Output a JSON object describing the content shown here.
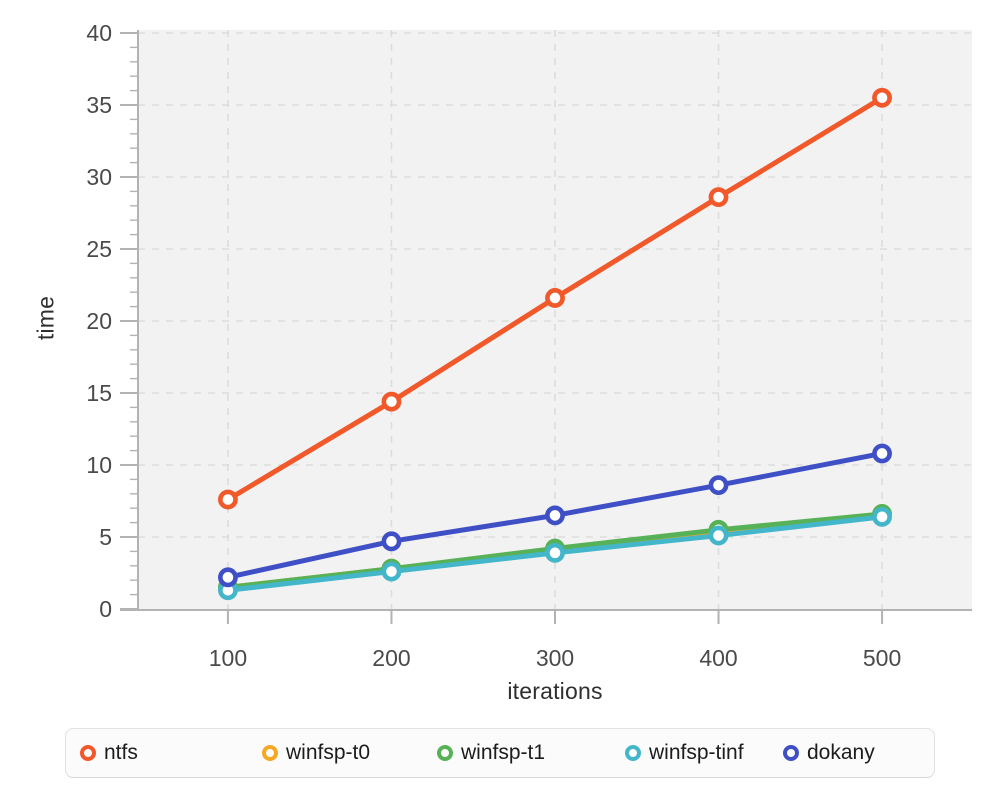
{
  "chart_data": {
    "type": "line",
    "title": "",
    "xlabel": "iterations",
    "ylabel": "time",
    "x": [
      100,
      200,
      300,
      400,
      500
    ],
    "xticks": [
      100,
      200,
      300,
      400,
      500
    ],
    "yticks": [
      0,
      5,
      10,
      15,
      20,
      25,
      30,
      35,
      40
    ],
    "y_minor_step": 1,
    "xlim": [
      45,
      555
    ],
    "ylim": [
      0,
      40
    ],
    "grid": "dashed",
    "legend_position": "bottom",
    "marker": "open-circle",
    "series": [
      {
        "name": "ntfs",
        "color": "#f1582a",
        "values": [
          7.6,
          14.4,
          21.6,
          28.6,
          35.5
        ]
      },
      {
        "name": "winfsp-t0",
        "color": "#f7a823",
        "values": [
          1.5,
          2.8,
          4.1,
          5.4,
          6.5
        ]
      },
      {
        "name": "winfsp-t1",
        "color": "#57b257",
        "values": [
          1.5,
          2.8,
          4.2,
          5.5,
          6.6
        ]
      },
      {
        "name": "winfsp-tinf",
        "color": "#43b6c9",
        "values": [
          1.3,
          2.6,
          3.9,
          5.1,
          6.4
        ]
      },
      {
        "name": "dokany",
        "color": "#3f50c6",
        "values": [
          2.2,
          4.7,
          6.5,
          8.6,
          10.8
        ]
      }
    ]
  },
  "style": {
    "plot_bg": "#f2f2f2",
    "grid_color": "#dcdcdc",
    "axis_color": "#b3b3b3",
    "tick_label_color": "#4a4a4a",
    "axis_title_color": "#2f2f2f",
    "legend_text_color": "#1c1c1c",
    "legend_bg": "#fbfbfb",
    "legend_border": "#e2e2e2"
  }
}
